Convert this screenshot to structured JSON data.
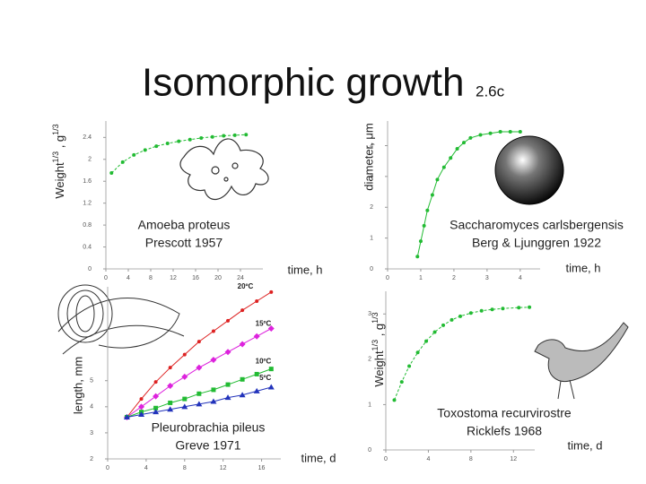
{
  "title": "Isomorphic growth",
  "tag": "2.6c",
  "chart_data": [
    {
      "type": "scatter",
      "ylabel": [
        {
          "text": "Weight"
        },
        {
          "text": "1/3",
          "sup": true
        },
        {
          "text": " , g"
        },
        {
          "text": "1/3",
          "sup": true
        }
      ],
      "xlabel": "time, h",
      "note": [
        "Amoeba proteus",
        "Prescott 1957"
      ],
      "xlim": [
        0,
        28
      ],
      "ylim": [
        0,
        2.7
      ],
      "xticks": [
        0,
        4,
        8,
        12,
        16,
        20,
        24
      ],
      "yticks": [
        0,
        0.4,
        0.8,
        1.2,
        1.6,
        2,
        2.4
      ],
      "series": [
        {
          "color": "#22bb33",
          "marker": "circle",
          "line": "dashed",
          "x": [
            1,
            3,
            5,
            7,
            9,
            11,
            13,
            15,
            17,
            19,
            21,
            23,
            25
          ],
          "values": [
            1.75,
            1.95,
            2.08,
            2.17,
            2.24,
            2.29,
            2.33,
            2.36,
            2.39,
            2.41,
            2.43,
            2.44,
            2.45
          ]
        }
      ]
    },
    {
      "type": "scatter",
      "ylabel": "diameter, μm",
      "xlabel": "time, h",
      "note": [
        "Saccharomyces carlsbergensis",
        "Berg & Ljunggren 1922"
      ],
      "xlim": [
        0,
        4.6
      ],
      "ylim": [
        0,
        4.8
      ],
      "xticks": [
        0,
        1,
        2,
        3,
        4
      ],
      "yticks": [
        0,
        1,
        2,
        3,
        4
      ],
      "series": [
        {
          "color": "#22bb33",
          "marker": "circle",
          "line": "solid",
          "x": [
            0.9,
            1.0,
            1.1,
            1.2,
            1.35,
            1.5,
            1.7,
            1.9,
            2.1,
            2.3,
            2.5,
            2.8,
            3.1,
            3.4,
            3.7,
            4.0
          ],
          "values": [
            0.4,
            0.9,
            1.4,
            1.9,
            2.4,
            2.9,
            3.3,
            3.6,
            3.9,
            4.1,
            4.25,
            4.35,
            4.4,
            4.45,
            4.45,
            4.45
          ]
        }
      ]
    },
    {
      "type": "scatter",
      "ylabel": "length, mm",
      "xlabel": "time, d",
      "note": [
        "Pleurobrachia pileus",
        "Greve 1971"
      ],
      "xlim": [
        0,
        18
      ],
      "ylim": [
        2,
        8.6
      ],
      "xticks": [
        0,
        4,
        8,
        12,
        16
      ],
      "yticks": [
        2,
        3,
        4,
        5
      ],
      "series": [
        {
          "name": "20ºC",
          "color": "#dd2222",
          "marker": "circle",
          "line": "solid",
          "x": [
            2,
            3.5,
            5,
            6.5,
            8,
            9.5,
            11,
            12.5,
            14,
            15.5,
            17
          ],
          "values": [
            3.6,
            4.3,
            4.95,
            5.5,
            6.0,
            6.5,
            6.9,
            7.3,
            7.7,
            8.05,
            8.4
          ]
        },
        {
          "name": "15ºC",
          "color": "#dd22dd",
          "marker": "diamond",
          "line": "solid",
          "x": [
            2,
            3.5,
            5,
            6.5,
            8,
            9.5,
            11,
            12.5,
            14,
            15.5,
            17
          ],
          "values": [
            3.6,
            4.0,
            4.4,
            4.8,
            5.15,
            5.5,
            5.8,
            6.1,
            6.4,
            6.7,
            7.0
          ]
        },
        {
          "name": "10ºC",
          "color": "#22bb33",
          "marker": "square",
          "line": "solid",
          "x": [
            2,
            3.5,
            5,
            6.5,
            8,
            9.5,
            11,
            12.5,
            14,
            15.5,
            17
          ],
          "values": [
            3.6,
            3.8,
            3.95,
            4.15,
            4.3,
            4.5,
            4.65,
            4.85,
            5.05,
            5.25,
            5.45
          ]
        },
        {
          "name": "5ºC",
          "color": "#2233bb",
          "marker": "triangle",
          "line": "solid",
          "x": [
            2,
            3.5,
            5,
            6.5,
            8,
            9.5,
            11,
            12.5,
            14,
            15.5,
            17
          ],
          "values": [
            3.6,
            3.7,
            3.8,
            3.9,
            4.0,
            4.1,
            4.2,
            4.35,
            4.45,
            4.6,
            4.75
          ]
        }
      ]
    },
    {
      "type": "scatter",
      "ylabel": [
        {
          "text": "Weight"
        },
        {
          "text": "1/3",
          "sup": true
        },
        {
          "text": " , g"
        },
        {
          "text": "1/3",
          "sup": true
        }
      ],
      "xlabel": "time, d",
      "note": [
        "Toxostoma recurvirostre",
        "Ricklefs 1968"
      ],
      "xlim": [
        0,
        14
      ],
      "ylim": [
        0,
        3.5
      ],
      "xticks": [
        0,
        4,
        8,
        12
      ],
      "yticks": [
        0,
        1,
        2,
        3
      ],
      "series": [
        {
          "color": "#22bb33",
          "marker": "circle",
          "line": "dashed",
          "x": [
            0.8,
            1.5,
            2.2,
            3,
            3.8,
            4.6,
            5.4,
            6.2,
            7,
            8,
            9,
            10,
            11,
            12.5,
            13.5
          ],
          "values": [
            1.1,
            1.5,
            1.85,
            2.15,
            2.4,
            2.6,
            2.75,
            2.87,
            2.95,
            3.02,
            3.07,
            3.1,
            3.12,
            3.14,
            3.15
          ]
        }
      ]
    }
  ]
}
